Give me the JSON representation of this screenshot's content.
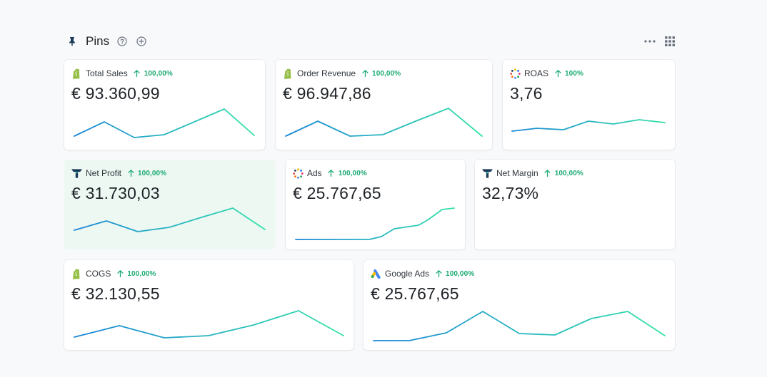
{
  "header": {
    "title": "Pins"
  },
  "cards": [
    {
      "id": "total-sales",
      "label": "Total Sales",
      "change": "100,00%",
      "value": "€ 93.360,99",
      "source": "shopify"
    },
    {
      "id": "order-revenue",
      "label": "Order Revenue",
      "change": "100,00%",
      "value": "€ 96.947,86",
      "source": "shopify"
    },
    {
      "id": "roas",
      "label": "ROAS",
      "change": "100%",
      "value": "3,76",
      "source": "multi"
    },
    {
      "id": "net-profit",
      "label": "Net Profit",
      "change": "100,00%",
      "value": "€ 31.730,03",
      "source": "brand"
    },
    {
      "id": "ads",
      "label": "Ads",
      "change": "100,00%",
      "value": "€ 25.767,65",
      "source": "multi"
    },
    {
      "id": "net-margin",
      "label": "Net Margin",
      "change": "100,00%",
      "value": "32,73%",
      "source": "brand"
    },
    {
      "id": "cogs",
      "label": "COGS",
      "change": "100,00%",
      "value": "€ 32.130,55",
      "source": "shopify"
    },
    {
      "id": "google-ads",
      "label": "Google Ads",
      "change": "100,00%",
      "value": "€ 25.767,65",
      "source": "google-ads"
    }
  ],
  "colors": {
    "trend_up": "#1aaa72",
    "spark_start": "#1a86d8",
    "spark_end": "#34e2a8",
    "active_card": "#edf8f3"
  }
}
